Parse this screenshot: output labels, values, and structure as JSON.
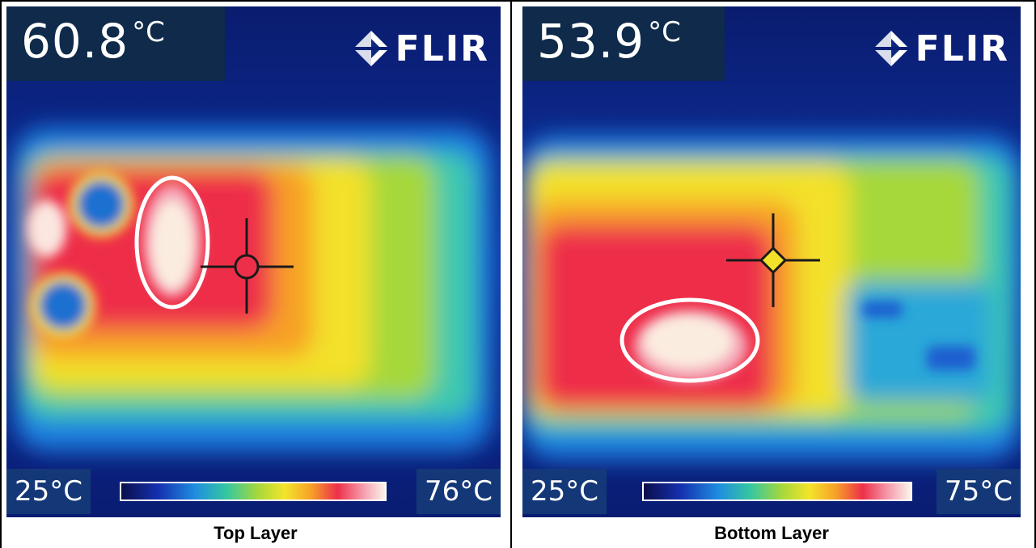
{
  "left_panel": {
    "spot_temperature": "60.8",
    "spot_unit": "°C",
    "logo_text": "FLIR",
    "scale_min": "25°C",
    "scale_max": "76°C",
    "caption": "Top Layer",
    "logo_icon": "flir-diamond-icon"
  },
  "right_panel": {
    "spot_temperature": "53.9",
    "spot_unit": "°C",
    "logo_text": "FLIR",
    "scale_min": "25°C",
    "scale_max": "75°C",
    "caption": "Bottom Layer",
    "logo_icon": "flir-diamond-icon"
  },
  "colors": {
    "cold": "#0a1a7a",
    "hot": "#ee2f4a",
    "hottest": "#fbf3ea",
    "highlight_ring": "#ffffff"
  }
}
